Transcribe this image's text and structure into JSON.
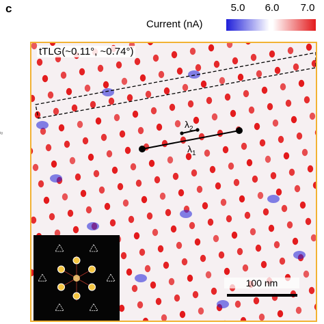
{
  "figure": {
    "panel_label": "c",
    "colorbar": {
      "title": "Current (nA)",
      "ticks": [
        "5.0",
        "6.0",
        "7.0"
      ],
      "low_color": "#1f1fd9",
      "mid_color": "#ffffff",
      "high_color": "#e31a1c"
    },
    "image": {
      "sample_label": "tTLG(~0.11°, ~0.74°)",
      "frame_color": "#f2b233",
      "scale_bar_label": "100 nm",
      "lambda1_label": "λ",
      "lambda1_sub": "1",
      "lambda2_label": "λ",
      "lambda2_sub": "2"
    },
    "side_mark": "ig"
  }
}
